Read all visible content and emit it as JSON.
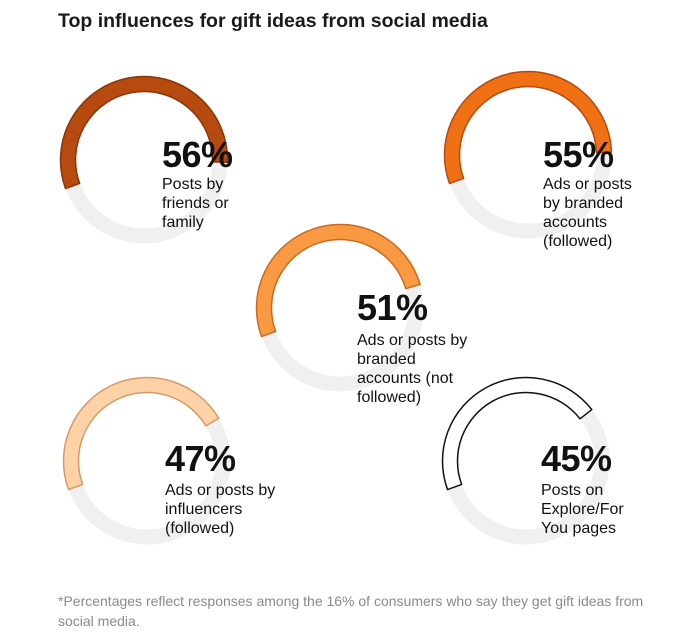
{
  "chart_data": {
    "type": "ring",
    "title": "Top influences for gift ideas from social media",
    "items": [
      {
        "value": 56,
        "value_label": "56%",
        "label": "Posts by friends or family",
        "color": "#b64a0f",
        "stroke": "#8a3608"
      },
      {
        "value": 55,
        "value_label": "55%",
        "label": "Ads or posts by branded accounts (followed)",
        "color": "#f07114",
        "stroke": "#b64a0f"
      },
      {
        "value": 51,
        "value_label": "51%",
        "label": "Ads or posts by branded accounts (not followed)",
        "color": "#f99a42",
        "stroke": "#c96a20"
      },
      {
        "value": 47,
        "value_label": "47%",
        "label": "Ads or posts by influencers (followed)",
        "color": "#fcd2a6",
        "stroke": "#d69a6a"
      },
      {
        "value": 45,
        "value_label": "45%",
        "label": "Posts on Explore/For You pages",
        "color": "#ffffff",
        "stroke": "#111111"
      }
    ],
    "track_color": "#f0f0f0",
    "footnote": "*Percentages reflect responses among the 16% of consumers who say they get gift ideas from social media."
  }
}
